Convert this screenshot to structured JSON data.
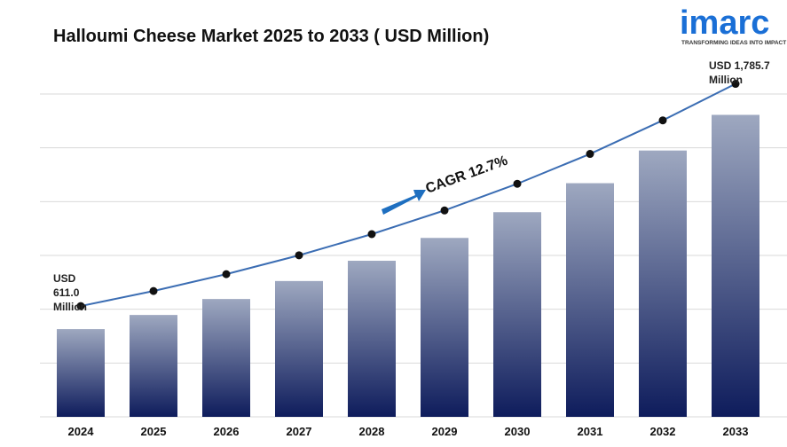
{
  "chart_data": {
    "type": "bar",
    "title": "Halloumi Cheese Market 2025 to 2033 ( USD Million)",
    "categories": [
      "2024",
      "2025",
      "2026",
      "2027",
      "2028",
      "2029",
      "2030",
      "2031",
      "2032",
      "2033"
    ],
    "values": [
      611.0,
      688.6,
      776.1,
      874.7,
      985.8,
      1111.0,
      1252.1,
      1411.1,
      1590.3,
      1785.7
    ],
    "value_labels": [
      "USD 611.0 Million",
      null,
      null,
      null,
      null,
      null,
      null,
      null,
      null,
      "USD 1,785.7 Million"
    ],
    "color": "#0e1c5c",
    "line_color": "#3b6db3",
    "ylim": [
      130,
      1900
    ],
    "grid": true,
    "annotation": "CAGR 12.7%"
  },
  "logo": {
    "name": "imarc",
    "tagline": "TRANSFORMING IDEAS INTO IMPACT"
  }
}
